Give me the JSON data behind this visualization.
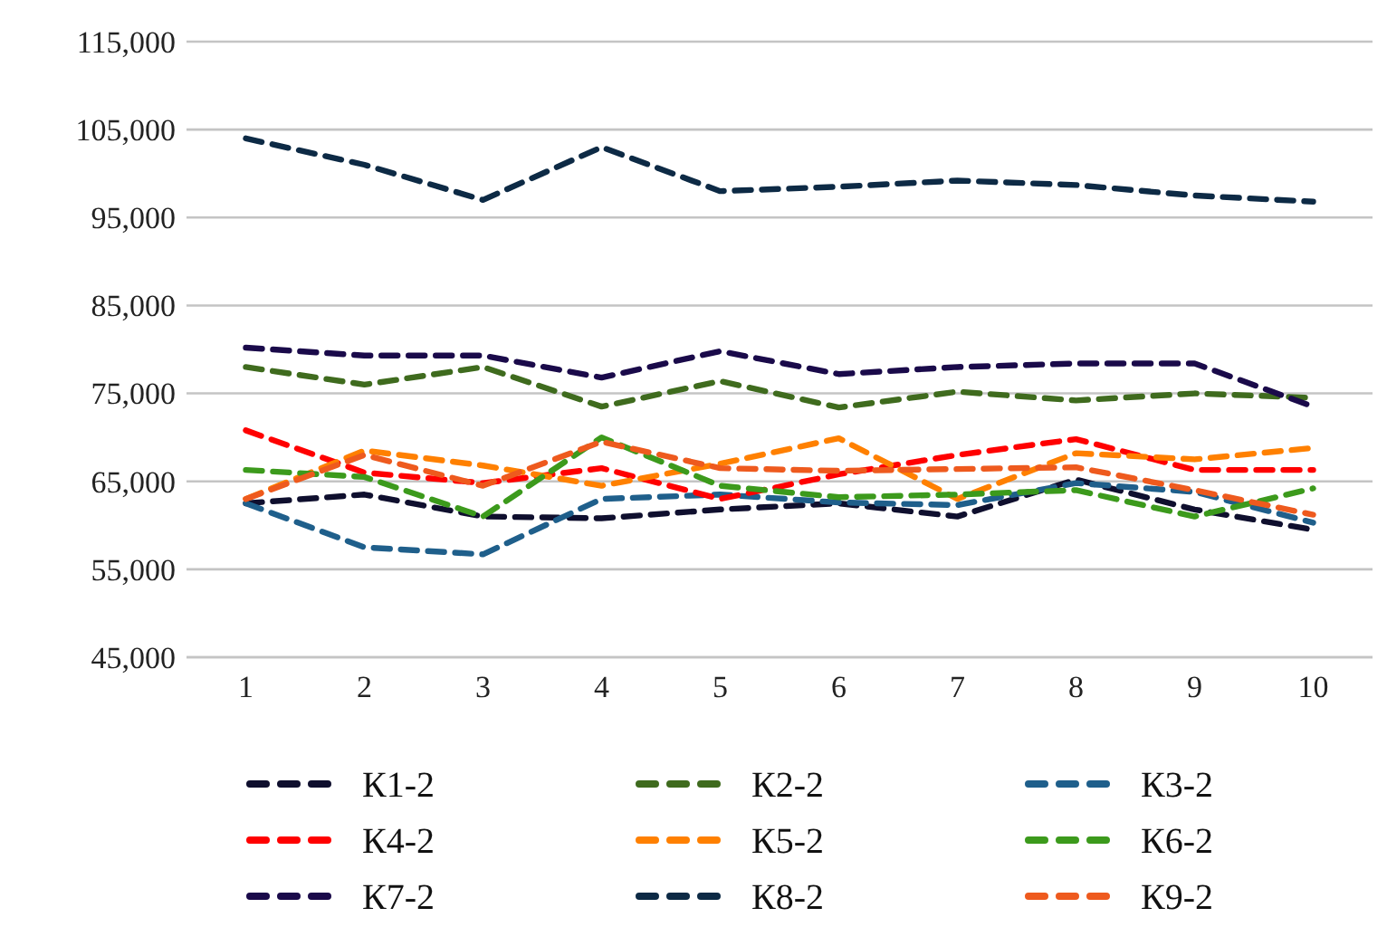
{
  "chart_data": {
    "type": "line",
    "categories": [
      "1",
      "2",
      "3",
      "4",
      "5",
      "6",
      "7",
      "8",
      "9",
      "10"
    ],
    "ylim": [
      45000,
      115000
    ],
    "yticks": [
      {
        "value": 45000,
        "label": "45,000"
      },
      {
        "value": 55000,
        "label": "55,000"
      },
      {
        "value": 65000,
        "label": "65,000"
      },
      {
        "value": 75000,
        "label": "75,000"
      },
      {
        "value": 85000,
        "label": "85,000"
      },
      {
        "value": 95000,
        "label": "95,000"
      },
      {
        "value": 105000,
        "label": "105,000"
      },
      {
        "value": 115000,
        "label": "115,000"
      }
    ],
    "grid": "y",
    "legend": "bottom",
    "line_style": "dashed",
    "marker": "none",
    "series": [
      {
        "name": "К1-2",
        "color": "#0f0f2e",
        "values": [
          62500,
          63500,
          61000,
          60800,
          61800,
          62500,
          61000,
          65200,
          61800,
          59500
        ]
      },
      {
        "name": "К2-2",
        "color": "#3f6b1e",
        "values": [
          78000,
          76000,
          78000,
          73500,
          76400,
          73400,
          75200,
          74200,
          75000,
          74500
        ]
      },
      {
        "name": "К3-2",
        "color": "#1f5f8b",
        "values": [
          62500,
          57500,
          56700,
          63000,
          63500,
          62600,
          62300,
          64800,
          63800,
          60300
        ]
      },
      {
        "name": "К4-2",
        "color": "#ff0000",
        "values": [
          70800,
          66000,
          64800,
          66500,
          63000,
          65800,
          68000,
          69800,
          66300,
          66300
        ]
      },
      {
        "name": "К5-2",
        "color": "#ff8000",
        "values": [
          63000,
          68500,
          66800,
          64500,
          67000,
          69900,
          63000,
          68200,
          67500,
          68800
        ]
      },
      {
        "name": "К6-2",
        "color": "#3c9a1c",
        "values": [
          66300,
          65500,
          61000,
          70000,
          64500,
          63200,
          63500,
          64000,
          61000,
          64200
        ]
      },
      {
        "name": "К7-2",
        "color": "#1a0a4a",
        "values": [
          80200,
          79300,
          79300,
          76800,
          79800,
          77200,
          78000,
          78400,
          78400,
          73500
        ]
      },
      {
        "name": "К8-2",
        "color": "#0d2a45",
        "values": [
          104000,
          101000,
          97000,
          103000,
          98000,
          98500,
          99200,
          98700,
          97500,
          96800
        ]
      },
      {
        "name": "К9-2",
        "color": "#ee5a1e",
        "values": [
          63000,
          68000,
          64500,
          69500,
          66500,
          66200,
          66400,
          66600,
          64000,
          61200
        ]
      }
    ]
  }
}
